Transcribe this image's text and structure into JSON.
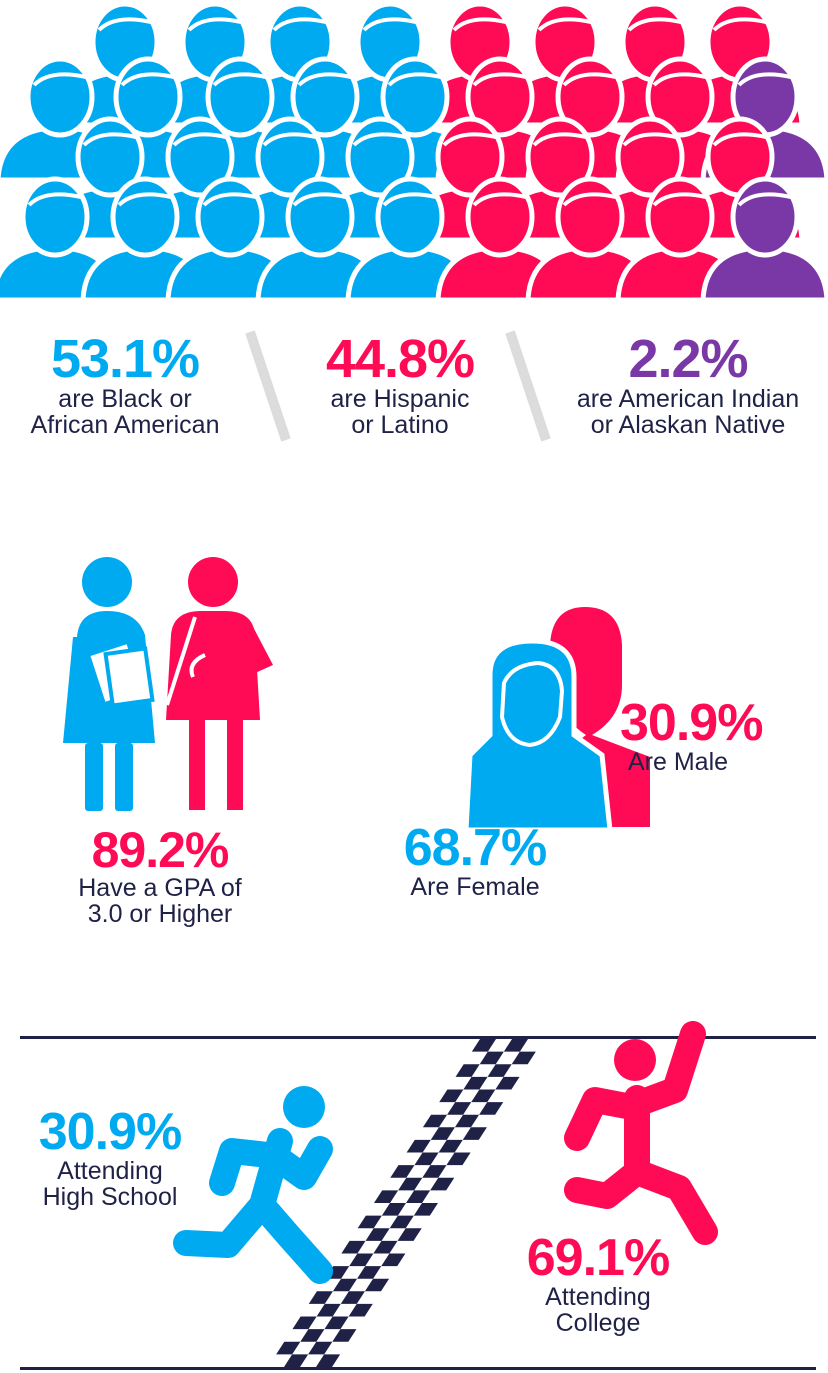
{
  "colors": {
    "blue": "#00aaf0",
    "pink": "#ff0a54",
    "purple": "#7a38a6",
    "navy": "#1f2147",
    "gray": "#dcdcdc"
  },
  "crowd": {
    "icon": "person-silhouette-icon",
    "counts": {
      "blue": 19,
      "pink": 14,
      "purple": 2
    }
  },
  "ethnicity": [
    {
      "percent": "53.1%",
      "line1": "are Black or",
      "line2": "African American"
    },
    {
      "percent": "44.8%",
      "line1": "are Hispanic",
      "line2": "or Latino"
    },
    {
      "percent": "2.2%",
      "line1": "are American Indian",
      "line2": "or Alaskan Native"
    }
  ],
  "gpa": {
    "percent": "89.2%",
    "line1": "Have a GPA of",
    "line2": "3.0 or Higher",
    "icon": "students-icon"
  },
  "gender": {
    "male": {
      "percent": "30.9%",
      "label": "Are Male",
      "icon": "male-head-icon"
    },
    "female": {
      "percent": "68.7%",
      "label": "Are Female",
      "icon": "female-head-icon"
    }
  },
  "attending": {
    "high_school": {
      "percent": "30.9%",
      "line1": "Attending",
      "line2": "High School",
      "icon": "runner-icon"
    },
    "college": {
      "percent": "69.1%",
      "line1": "Attending",
      "line2": "College",
      "icon": "runner-finish-icon"
    },
    "finish_line": "checkered-flag-icon"
  }
}
